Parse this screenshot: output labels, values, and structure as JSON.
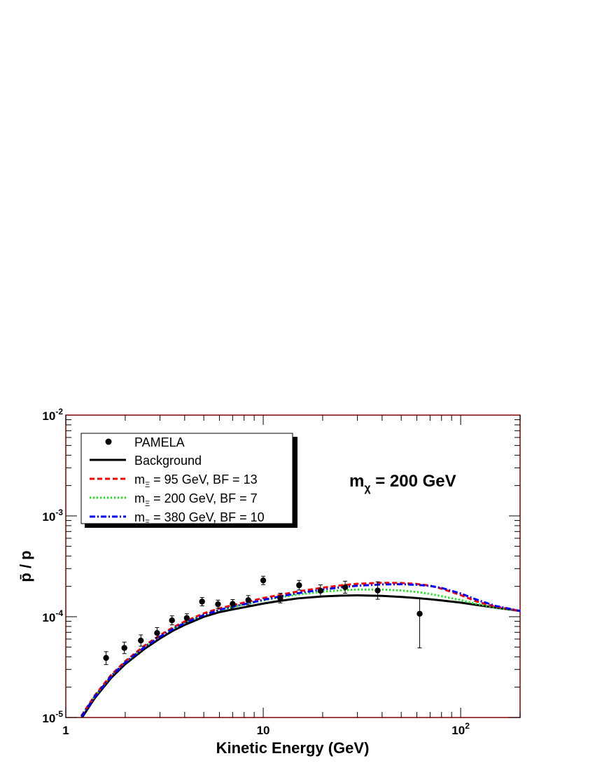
{
  "chart_data": {
    "type": "line",
    "xlabel": "Kinetic Energy (GeV)",
    "ylabel": "p̄ / p",
    "xscale": "log",
    "yscale": "log",
    "xlim": [
      1,
      200
    ],
    "ylim": [
      1e-05,
      0.01
    ],
    "x_tick_labels": [
      {
        "value": 1,
        "base": "1",
        "exp": ""
      },
      {
        "value": 10,
        "base": "10",
        "exp": ""
      },
      {
        "value": 100,
        "base": "10",
        "exp": "2"
      }
    ],
    "y_tick_labels": [
      {
        "value": 1e-05,
        "base": "10",
        "exp": "-5"
      },
      {
        "value": 0.0001,
        "base": "10",
        "exp": "-4"
      },
      {
        "value": 0.001,
        "base": "10",
        "exp": "-3"
      },
      {
        "value": 0.01,
        "base": "10",
        "exp": "-2"
      }
    ],
    "annotation": {
      "prefix": "m",
      "sub": "χ",
      "suffix": " = 200 GeV"
    },
    "legend_position": "top-left",
    "series": [
      {
        "name": "PAMELA",
        "kind": "points",
        "color": "#000000",
        "points": [
          {
            "x": 1.6,
            "y": 3.9e-05,
            "lo": 3.35e-05,
            "hi": 4.5e-05
          },
          {
            "x": 1.98,
            "y": 4.9e-05,
            "lo": 4.3e-05,
            "hi": 5.6e-05
          },
          {
            "x": 2.4,
            "y": 5.8e-05,
            "lo": 5.1e-05,
            "hi": 6.6e-05
          },
          {
            "x": 2.9,
            "y": 6.9e-05,
            "lo": 6.2e-05,
            "hi": 7.8e-05
          },
          {
            "x": 3.45,
            "y": 9.2e-05,
            "lo": 8.3e-05,
            "hi": 0.000102
          },
          {
            "x": 4.1,
            "y": 9.7e-05,
            "lo": 8.8e-05,
            "hi": 0.000107
          },
          {
            "x": 4.9,
            "y": 0.000141,
            "lo": 0.000128,
            "hi": 0.000155
          },
          {
            "x": 5.9,
            "y": 0.000133,
            "lo": 0.000121,
            "hi": 0.000146
          },
          {
            "x": 7.0,
            "y": 0.000134,
            "lo": 0.000121,
            "hi": 0.000148
          },
          {
            "x": 8.4,
            "y": 0.000146,
            "lo": 0.000131,
            "hi": 0.000162
          },
          {
            "x": 10.0,
            "y": 0.000229,
            "lo": 0.000208,
            "hi": 0.000252
          },
          {
            "x": 12.2,
            "y": 0.000153,
            "lo": 0.000137,
            "hi": 0.000171
          },
          {
            "x": 15.2,
            "y": 0.000205,
            "lo": 0.000184,
            "hi": 0.000229
          },
          {
            "x": 19.5,
            "y": 0.000181,
            "lo": 0.000159,
            "hi": 0.000207
          },
          {
            "x": 26.0,
            "y": 0.000196,
            "lo": 0.000171,
            "hi": 0.000225
          },
          {
            "x": 38.0,
            "y": 0.000182,
            "lo": 0.000149,
            "hi": 0.000222
          },
          {
            "x": 62.0,
            "y": 0.000107,
            "lo": 4.9e-05,
            "hi": 0.000153
          }
        ]
      },
      {
        "name": "Background",
        "kind": "line",
        "color": "#000000",
        "dash": "",
        "width": 3,
        "x": [
          1.2,
          1.4,
          1.7,
          2.0,
          2.5,
          3.0,
          3.5,
          4.0,
          5.0,
          6.0,
          7.0,
          8.0,
          10.0,
          12.0,
          15.0,
          20.0,
          25.0,
          30.0,
          40.0,
          50.0,
          60.0,
          70.0,
          80.0,
          100.0,
          120.0,
          150.0,
          200.0
        ],
        "y": [
          9.8e-06,
          1.55e-05,
          2.48e-05,
          3.38e-05,
          4.78e-05,
          6.08e-05,
          7.28e-05,
          8.28e-05,
          9.98e-05,
          0.000111,
          0.000118,
          0.000124,
          0.000135,
          0.000143,
          0.000152,
          0.000159,
          0.000162,
          0.000163,
          0.000161,
          0.000157,
          0.000153,
          0.000149,
          0.000145,
          0.000138,
          0.000131,
          0.000123,
          0.000114
        ]
      },
      {
        "name_prefix": "m",
        "name_sub": "Ξ",
        "name_suffix": " = 95 GeV, BF = 13",
        "kind": "line",
        "color": "#ff0000",
        "dash": "7,4",
        "width": 3,
        "x": [
          1.2,
          1.4,
          1.7,
          2.0,
          2.5,
          3.0,
          3.5,
          4.0,
          5.0,
          6.0,
          7.0,
          8.0,
          10.0,
          12.0,
          15.0,
          20.0,
          25.0,
          30.0,
          40.0,
          50.0,
          60.0,
          70.0,
          80.0,
          100.0,
          120.0,
          150.0,
          200.0
        ],
        "y": [
          1.04e-05,
          1.65e-05,
          2.65e-05,
          3.62e-05,
          5.15e-05,
          6.55e-05,
          7.85e-05,
          8.95e-05,
          0.000108,
          0.000121,
          0.00013,
          0.000138,
          0.000153,
          0.000164,
          0.000178,
          0.000194,
          0.000205,
          0.000212,
          0.000217,
          0.000216,
          0.000211,
          0.000203,
          0.00019,
          0.000164,
          0.000142,
          0.000126,
          0.000114
        ]
      },
      {
        "name_prefix": "m",
        "name_sub": "Ξ",
        "name_suffix": " = 200 GeV, BF = 7",
        "kind": "line",
        "color": "#00ee00",
        "dash": "2,3",
        "width": 3,
        "x": [
          1.2,
          1.4,
          1.7,
          2.0,
          2.5,
          3.0,
          3.5,
          4.0,
          5.0,
          6.0,
          7.0,
          8.0,
          10.0,
          12.0,
          15.0,
          20.0,
          25.0,
          30.0,
          40.0,
          50.0,
          60.0,
          70.0,
          80.0,
          100.0,
          120.0,
          150.0,
          200.0
        ],
        "y": [
          1.03e-05,
          1.62e-05,
          2.6e-05,
          3.55e-05,
          5.02e-05,
          6.38e-05,
          7.65e-05,
          8.7e-05,
          0.000105,
          0.000117,
          0.000125,
          0.000132,
          0.000145,
          0.000155,
          0.000166,
          0.000177,
          0.000183,
          0.000186,
          0.000186,
          0.000182,
          0.000176,
          0.000168,
          0.00016,
          0.000146,
          0.000134,
          0.000123,
          0.000114
        ]
      },
      {
        "name_prefix": "m",
        "name_sub": "Ξ",
        "name_suffix": " = 380 GeV, BF = 10",
        "kind": "line",
        "color": "#0000ff",
        "dash": "8,3,2,3",
        "width": 3,
        "x": [
          1.2,
          1.4,
          1.7,
          2.0,
          2.5,
          3.0,
          3.5,
          4.0,
          5.0,
          6.0,
          7.0,
          8.0,
          10.0,
          12.0,
          15.0,
          20.0,
          25.0,
          30.0,
          40.0,
          50.0,
          60.0,
          70.0,
          80.0,
          100.0,
          120.0,
          150.0,
          200.0
        ],
        "y": [
          1.02e-05,
          1.61e-05,
          2.58e-05,
          3.52e-05,
          4.98e-05,
          6.35e-05,
          7.6e-05,
          8.65e-05,
          0.000104,
          0.000117,
          0.000126,
          0.000133,
          0.000147,
          0.000158,
          0.000171,
          0.000186,
          0.000196,
          0.000203,
          0.000209,
          0.00021,
          0.000207,
          0.000202,
          0.000193,
          0.00017,
          0.000148,
          0.000128,
          0.000114
        ]
      }
    ]
  }
}
